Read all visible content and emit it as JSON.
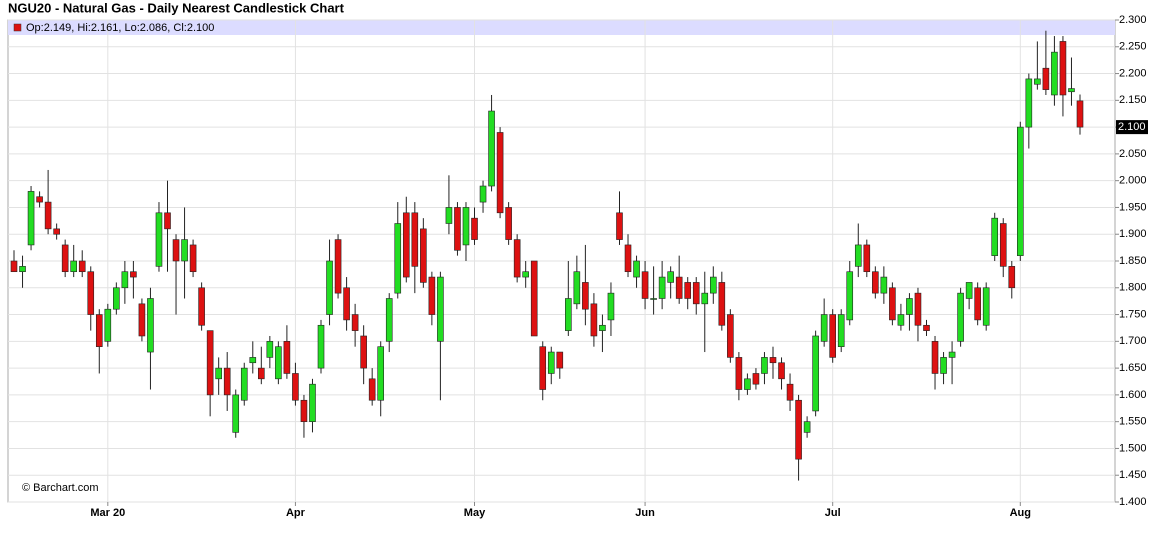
{
  "chart_data": {
    "type": "candlestick",
    "title": "NGU20 - Natural Gas - Daily Nearest Candlestick Chart",
    "info": "Op:2.149, Hi:2.161, Lo:2.086, Cl:2.100",
    "source": "© Barchart.com",
    "last_label": "2.100",
    "up_color": "#22dd22",
    "down_color": "#dd1111",
    "categories": [
      null,
      null,
      null,
      null,
      null,
      null,
      null,
      null,
      null,
      null,
      null,
      "Mar 20",
      null,
      null,
      null,
      null,
      null,
      null,
      null,
      null,
      null,
      null,
      null,
      null,
      null,
      null,
      null,
      null,
      null,
      null,
      null,
      null,
      null,
      "Apr",
      null,
      null,
      null,
      null,
      null,
      null,
      null,
      null,
      null,
      null,
      null,
      null,
      null,
      null,
      null,
      null,
      null,
      null,
      null,
      null,
      "May",
      null,
      null,
      null,
      null,
      null,
      null,
      null,
      null,
      null,
      null,
      null,
      null,
      null,
      null,
      null,
      null,
      null,
      null,
      null,
      "Jun",
      null,
      null,
      null,
      null,
      null,
      null,
      null,
      null,
      null,
      null,
      null,
      null,
      null,
      null,
      null,
      null,
      null,
      null,
      null,
      null,
      null,
      "Jul",
      null,
      null,
      null,
      null,
      null,
      null,
      null,
      null,
      null,
      null,
      null,
      null,
      null,
      null,
      null,
      null,
      null,
      null,
      null,
      null,
      null,
      "Aug",
      null,
      null,
      null,
      null,
      null,
      null,
      null
    ],
    "open": [
      1.85,
      1.83,
      1.88,
      1.97,
      1.96,
      1.91,
      1.88,
      1.83,
      1.85,
      1.83,
      1.75,
      1.7,
      1.76,
      1.8,
      1.83,
      1.77,
      1.68,
      1.84,
      1.94,
      1.89,
      1.85,
      1.88,
      1.8,
      1.72,
      1.63,
      1.65,
      1.53,
      1.59,
      1.66,
      1.65,
      1.67,
      1.63,
      1.7,
      1.64,
      1.59,
      1.55,
      1.65,
      1.75,
      1.89,
      1.8,
      1.75,
      1.71,
      1.63,
      1.59,
      1.7,
      1.79,
      1.94,
      1.94,
      1.91,
      1.82,
      1.7,
      1.92,
      1.95,
      1.88,
      1.93,
      1.96,
      1.99,
      2.09,
      1.95,
      1.89,
      1.82,
      1.85,
      1.69,
      1.64,
      1.68,
      1.72,
      1.77,
      1.81,
      1.77,
      1.72,
      1.74,
      1.94,
      1.88,
      1.82,
      1.83,
      1.78,
      1.78,
      1.81,
      1.82,
      1.81,
      1.81,
      1.77,
      1.79,
      1.81,
      1.75,
      1.67,
      1.61,
      1.64,
      1.64,
      1.67,
      1.66,
      1.62,
      1.59,
      1.53,
      1.57,
      1.7,
      1.75,
      1.69,
      1.74,
      1.84,
      1.88,
      1.83,
      1.79,
      1.8,
      1.73,
      1.75,
      1.79,
      1.73,
      1.7,
      1.64,
      1.67,
      1.7,
      1.78,
      1.8,
      1.73,
      1.86,
      1.92,
      1.84,
      1.86,
      2.1,
      2.18,
      2.21,
      2.16,
      2.26,
      2.166,
      2.149
    ],
    "high": [
      1.87,
      1.86,
      1.99,
      1.98,
      2.02,
      1.92,
      1.89,
      1.88,
      1.87,
      1.84,
      1.76,
      1.77,
      1.81,
      1.85,
      1.85,
      1.78,
      1.8,
      1.96,
      2.0,
      1.9,
      1.95,
      1.89,
      1.81,
      1.72,
      1.67,
      1.68,
      1.61,
      1.66,
      1.7,
      1.69,
      1.71,
      1.7,
      1.73,
      1.66,
      1.6,
      1.63,
      1.74,
      1.89,
      1.9,
      1.82,
      1.77,
      1.73,
      1.65,
      1.7,
      1.79,
      1.96,
      1.97,
      1.96,
      1.93,
      1.83,
      1.83,
      2.01,
      1.96,
      1.96,
      1.95,
      2.0,
      2.16,
      2.1,
      1.96,
      1.9,
      1.85,
      1.85,
      1.7,
      1.69,
      1.68,
      1.85,
      1.86,
      1.88,
      1.79,
      1.75,
      1.81,
      1.98,
      1.9,
      1.86,
      1.85,
      1.84,
      1.85,
      1.84,
      1.86,
      1.82,
      1.82,
      1.83,
      1.84,
      1.83,
      1.76,
      1.68,
      1.64,
      1.65,
      1.68,
      1.69,
      1.67,
      1.64,
      1.6,
      1.56,
      1.72,
      1.78,
      1.76,
      1.76,
      1.85,
      1.92,
      1.89,
      1.84,
      1.84,
      1.81,
      1.77,
      1.79,
      1.8,
      1.74,
      1.71,
      1.68,
      1.7,
      1.8,
      1.81,
      1.81,
      1.81,
      1.94,
      1.93,
      1.85,
      2.11,
      2.2,
      2.26,
      2.28,
      2.27,
      2.27,
      2.23,
      2.161
    ],
    "low": [
      1.83,
      1.8,
      1.87,
      1.95,
      1.9,
      1.89,
      1.82,
      1.82,
      1.82,
      1.72,
      1.64,
      1.69,
      1.75,
      1.77,
      1.78,
      1.7,
      1.61,
      1.83,
      1.83,
      1.75,
      1.78,
      1.82,
      1.72,
      1.56,
      1.6,
      1.57,
      1.52,
      1.58,
      1.64,
      1.62,
      1.65,
      1.62,
      1.63,
      1.58,
      1.52,
      1.53,
      1.64,
      1.73,
      1.78,
      1.72,
      1.69,
      1.62,
      1.58,
      1.56,
      1.68,
      1.78,
      1.81,
      1.79,
      1.8,
      1.73,
      1.59,
      1.9,
      1.86,
      1.85,
      1.88,
      1.94,
      1.98,
      1.93,
      1.88,
      1.81,
      1.8,
      1.71,
      1.59,
      1.62,
      1.63,
      1.71,
      1.76,
      1.73,
      1.69,
      1.68,
      1.71,
      1.88,
      1.82,
      1.8,
      1.76,
      1.75,
      1.76,
      1.78,
      1.77,
      1.76,
      1.75,
      1.68,
      1.77,
      1.72,
      1.66,
      1.59,
      1.6,
      1.61,
      1.62,
      1.63,
      1.61,
      1.57,
      1.44,
      1.52,
      1.56,
      1.69,
      1.66,
      1.68,
      1.73,
      1.82,
      1.82,
      1.78,
      1.77,
      1.73,
      1.72,
      1.72,
      1.7,
      1.71,
      1.61,
      1.62,
      1.62,
      1.69,
      1.76,
      1.73,
      1.72,
      1.85,
      1.82,
      1.78,
      1.85,
      2.06,
      2.17,
      2.16,
      2.14,
      2.12,
      2.14,
      2.086
    ],
    "close": [
      1.83,
      1.84,
      1.98,
      1.96,
      1.91,
      1.9,
      1.83,
      1.85,
      1.83,
      1.75,
      1.69,
      1.76,
      1.8,
      1.83,
      1.82,
      1.71,
      1.78,
      1.94,
      1.91,
      1.85,
      1.89,
      1.83,
      1.73,
      1.6,
      1.65,
      1.6,
      1.6,
      1.65,
      1.67,
      1.63,
      1.7,
      1.69,
      1.64,
      1.59,
      1.55,
      1.62,
      1.73,
      1.85,
      1.79,
      1.74,
      1.72,
      1.65,
      1.59,
      1.69,
      1.78,
      1.92,
      1.82,
      1.84,
      1.81,
      1.75,
      1.82,
      1.95,
      1.87,
      1.95,
      1.89,
      1.99,
      2.13,
      1.94,
      1.89,
      1.82,
      1.83,
      1.71,
      1.61,
      1.68,
      1.65,
      1.78,
      1.83,
      1.76,
      1.71,
      1.73,
      1.79,
      1.89,
      1.83,
      1.85,
      1.78,
      1.78,
      1.82,
      1.83,
      1.78,
      1.78,
      1.77,
      1.79,
      1.82,
      1.73,
      1.67,
      1.61,
      1.63,
      1.62,
      1.67,
      1.66,
      1.63,
      1.59,
      1.48,
      1.55,
      1.71,
      1.75,
      1.67,
      1.75,
      1.83,
      1.88,
      1.83,
      1.79,
      1.82,
      1.74,
      1.75,
      1.78,
      1.73,
      1.72,
      1.64,
      1.67,
      1.68,
      1.79,
      1.81,
      1.74,
      1.8,
      1.93,
      1.84,
      1.8,
      2.1,
      2.19,
      2.19,
      2.17,
      2.24,
      2.16,
      2.172,
      2.1
    ],
    "ylim": [
      1.4,
      2.3
    ],
    "yticks": [
      {
        "value": 1.4,
        "label": "1.400"
      },
      {
        "value": 1.45,
        "label": "1.450"
      },
      {
        "value": 1.5,
        "label": "1.500"
      },
      {
        "value": 1.55,
        "label": "1.550"
      },
      {
        "value": 1.6,
        "label": "1.600"
      },
      {
        "value": 1.65,
        "label": "1.650"
      },
      {
        "value": 1.7,
        "label": "1.700"
      },
      {
        "value": 1.75,
        "label": "1.750"
      },
      {
        "value": 1.8,
        "label": "1.800"
      },
      {
        "value": 1.85,
        "label": "1.850"
      },
      {
        "value": 1.9,
        "label": "1.900"
      },
      {
        "value": 1.95,
        "label": "1.950"
      },
      {
        "value": 2.0,
        "label": "2.000"
      },
      {
        "value": 2.05,
        "label": "2.050"
      },
      {
        "value": 2.1,
        "label": "2.100"
      },
      {
        "value": 2.15,
        "label": "2.150"
      },
      {
        "value": 2.2,
        "label": "2.200"
      },
      {
        "value": 2.25,
        "label": "2.250"
      },
      {
        "value": 2.3,
        "label": "2.300"
      }
    ],
    "grid": true
  }
}
